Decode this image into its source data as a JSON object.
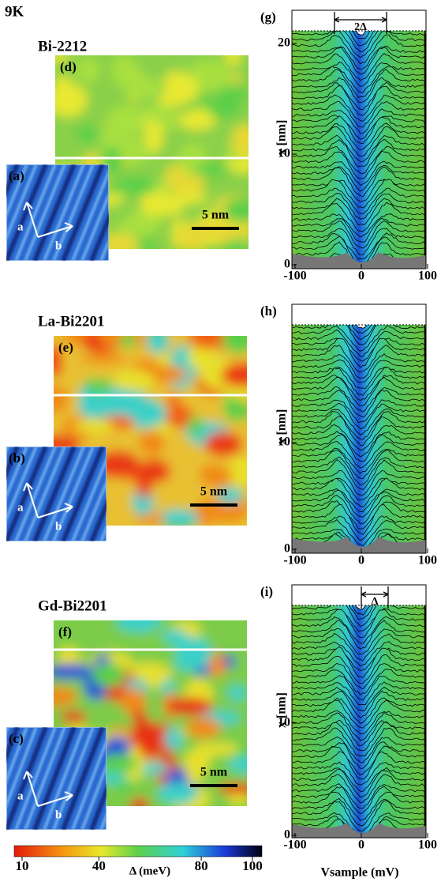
{
  "temperature": "9K",
  "panels": [
    {
      "sample": "Bi-2212",
      "map_label": "(d)",
      "inset_label": "(a)",
      "arrow_labels": [
        "a",
        "b"
      ],
      "scale_bar": "5 nm",
      "spectra_label": "(g)",
      "y_axis": "x [nm]",
      "yticks": [
        0,
        10,
        20
      ],
      "xticks": [
        -100,
        0,
        100
      ],
      "annotation": "2Δ"
    },
    {
      "sample": "La-Bi2201",
      "map_label": "(e)",
      "inset_label": "(b)",
      "arrow_labels": [
        "a",
        "b"
      ],
      "scale_bar": "5 nm",
      "spectra_label": "(h)",
      "y_axis": "x [nm]",
      "yticks": [
        0,
        10
      ],
      "xticks": [
        -100,
        0,
        100
      ]
    },
    {
      "sample": "Gd-Bi2201",
      "map_label": "(f)",
      "inset_label": "(c)",
      "arrow_labels": [
        "a",
        "b"
      ],
      "scale_bar": "5 nm",
      "spectra_label": "(i)",
      "y_axis": "x [nm]",
      "yticks": [
        0,
        10
      ],
      "xticks": [
        -100,
        0,
        100
      ],
      "annotation": "Δ"
    }
  ],
  "colorbar": {
    "ticks": [
      10,
      40,
      80,
      100
    ],
    "label": "Δ (meV)"
  },
  "x_axis_label": "Vsample (mV)"
}
